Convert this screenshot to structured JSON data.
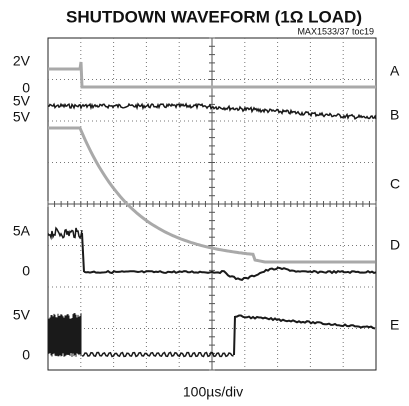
{
  "header": {
    "title": "SHUTDOWN WAVEFORM (1Ω LOAD)",
    "subtitle": "MAX1533/37 toc19"
  },
  "left_labels": [
    "2V",
    "0",
    "5V",
    "5V",
    "5A",
    "0",
    "5V",
    "0"
  ],
  "channels": [
    "A",
    "B",
    "C",
    "D",
    "E"
  ],
  "footer": {
    "time_scale": "100µs/div"
  }
}
